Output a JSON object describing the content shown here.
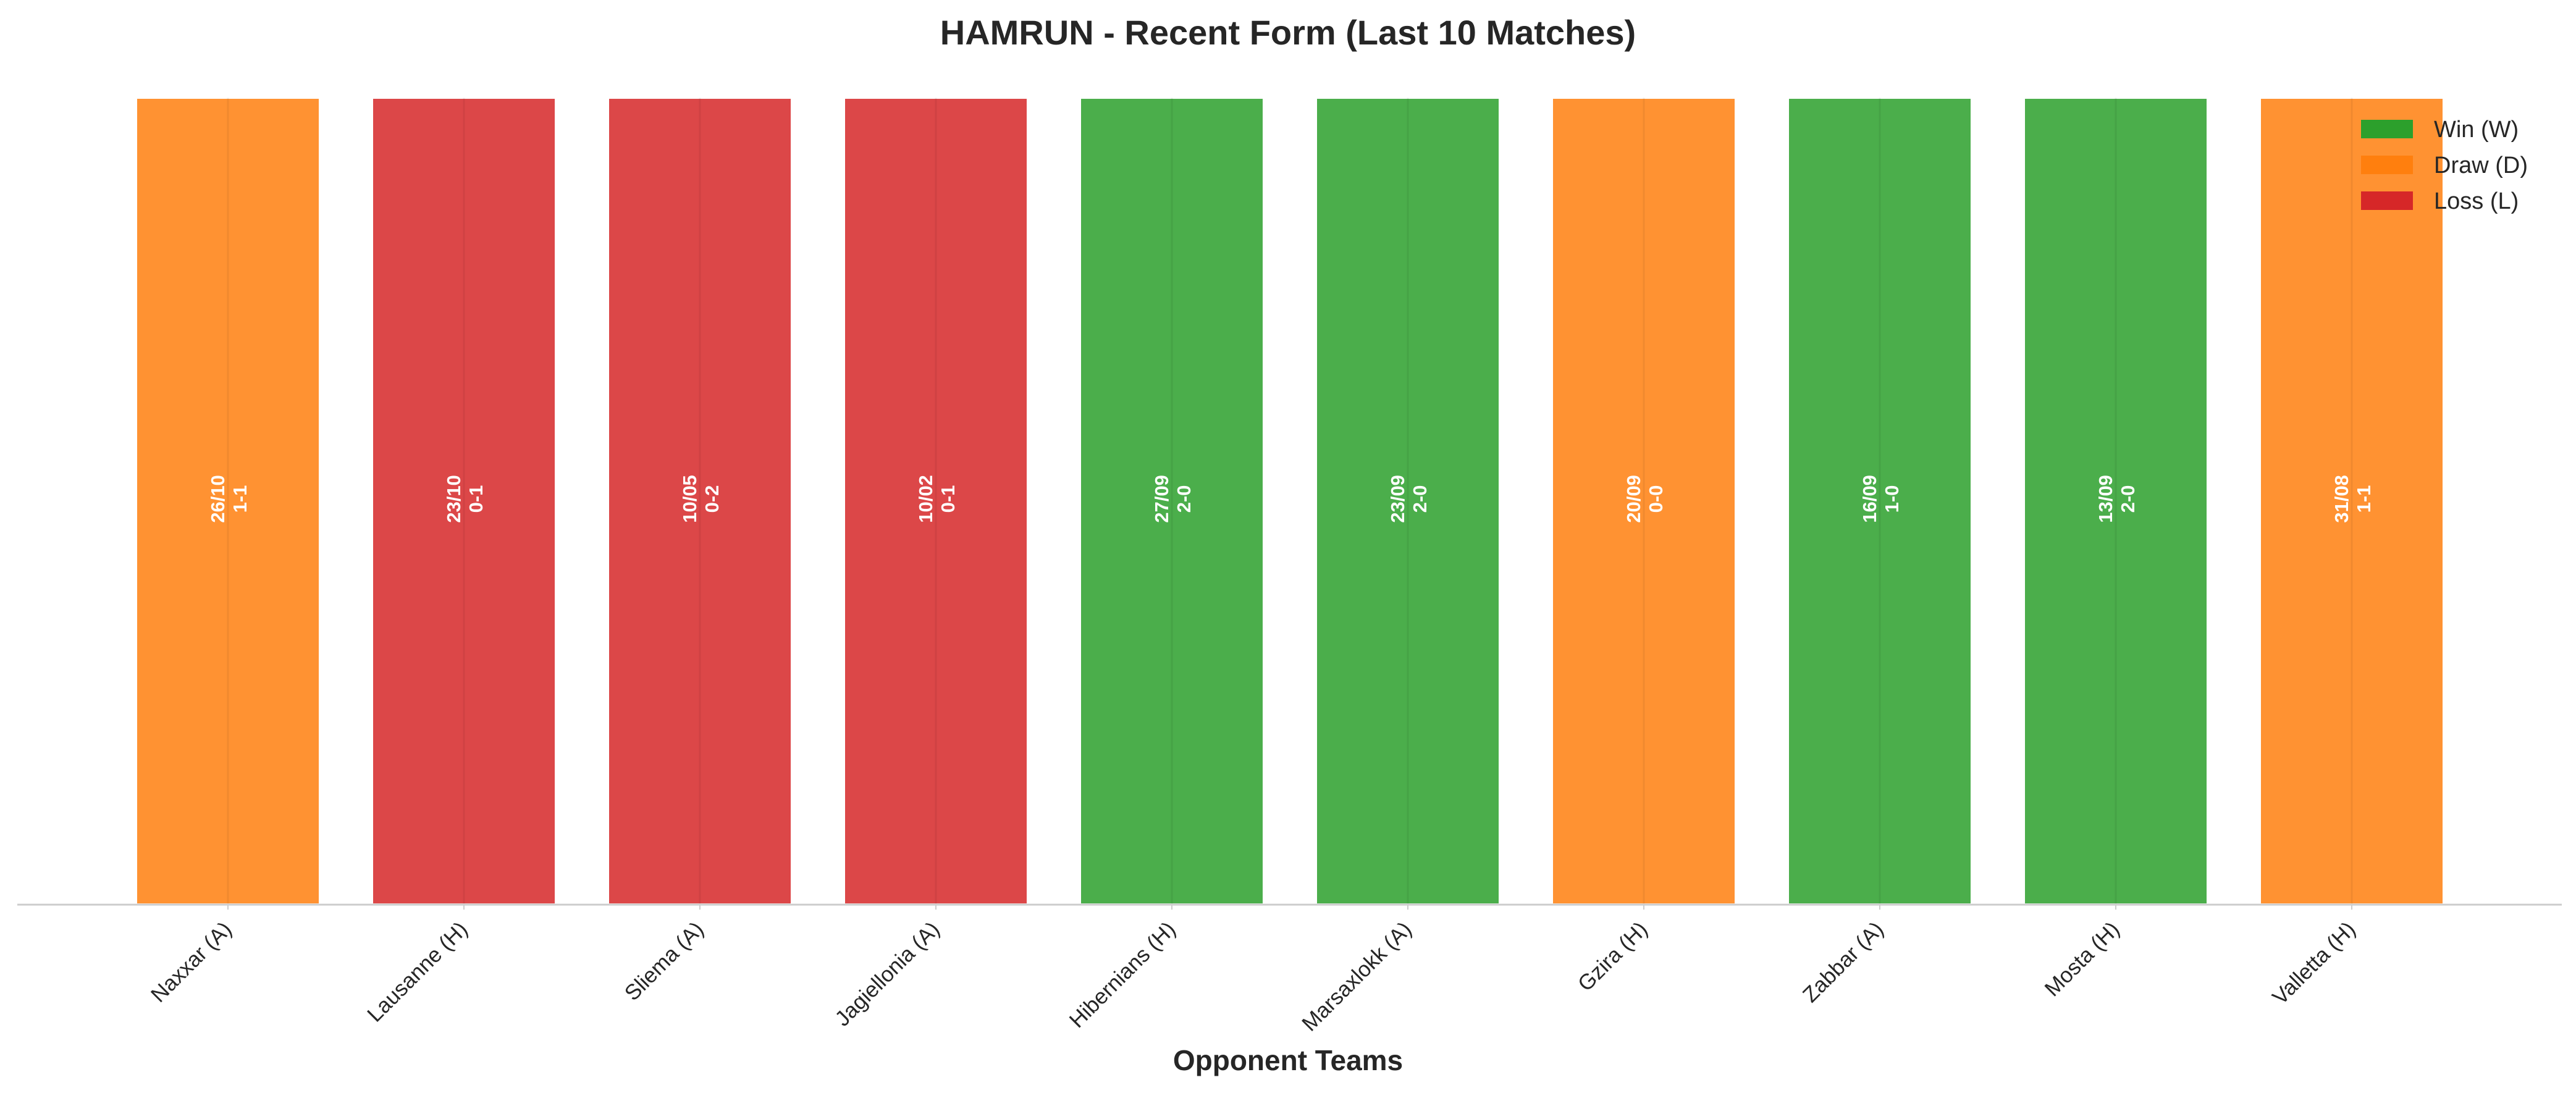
{
  "chart_data": {
    "type": "bar",
    "title": "HAMRUN - Recent Form (Last 10 Matches)",
    "xlabel": "Opponent Teams",
    "ylabel": "",
    "ylim": [
      0,
      1
    ],
    "grid": false,
    "legend_position": "top-right",
    "categories": [
      "Naxxar (A)",
      "Lausanne (H)",
      "Sliema (A)",
      "Jagiellonia (A)",
      "Hibernians (H)",
      "Marsaxlokk (A)",
      "Gzira (H)",
      "Zabbar (A)",
      "Mosta (H)",
      "Valletta (H)"
    ],
    "values": [
      1,
      1,
      1,
      1,
      1,
      1,
      1,
      1,
      1,
      1
    ],
    "results": [
      "D",
      "L",
      "L",
      "L",
      "W",
      "W",
      "D",
      "W",
      "W",
      "D"
    ],
    "dates": [
      "26/10",
      "23/10",
      "10/05",
      "10/02",
      "27/09",
      "23/09",
      "20/09",
      "16/09",
      "13/09",
      "31/08"
    ],
    "scores": [
      "1-1",
      "0-1",
      "0-2",
      "0-1",
      "2-0",
      "2-0",
      "0-0",
      "1-0",
      "2-0",
      "1-1"
    ],
    "colors": {
      "W": "#2ca02c",
      "D": "#ff7f0e",
      "L": "#d62728"
    },
    "legend": [
      {
        "key": "W",
        "label": "Win (W)"
      },
      {
        "key": "D",
        "label": "Draw (D)"
      },
      {
        "key": "L",
        "label": "Loss (L)"
      }
    ]
  }
}
